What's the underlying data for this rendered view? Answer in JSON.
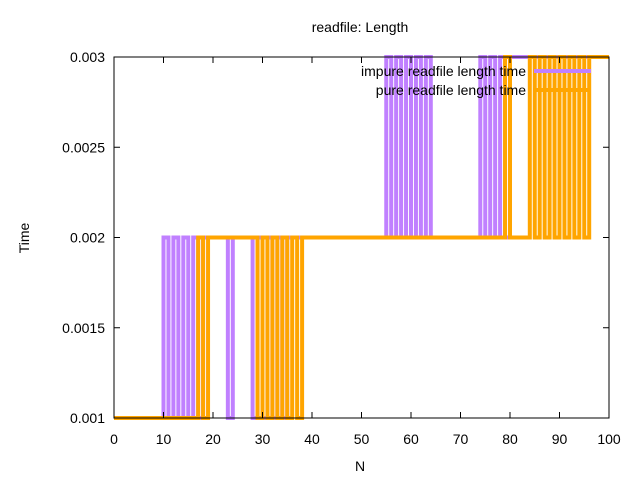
{
  "chart_data": {
    "type": "line",
    "title": "readfile: Length",
    "xlabel": "N",
    "ylabel": "Time",
    "xlim": [
      0,
      100
    ],
    "ylim": [
      0.001,
      0.003
    ],
    "xticks": [
      "0",
      "10",
      "20",
      "30",
      "40",
      "50",
      "60",
      "70",
      "80",
      "90",
      "100"
    ],
    "yticks": [
      "0.001",
      "0.0015",
      "0.002",
      "0.0025",
      "0.003"
    ],
    "grid": false,
    "legend_position": "top-right",
    "series": [
      {
        "name": "impure readfile length time",
        "color": "#c080ff",
        "x": [
          0,
          1,
          2,
          3,
          4,
          5,
          6,
          7,
          8,
          9,
          10,
          11,
          12,
          13,
          14,
          15,
          16,
          17,
          18,
          19,
          20,
          21,
          22,
          23,
          24,
          25,
          26,
          27,
          28,
          29,
          30,
          31,
          32,
          33,
          34,
          35,
          36,
          37,
          38,
          39,
          40,
          41,
          42,
          43,
          44,
          45,
          46,
          47,
          48,
          49,
          50,
          51,
          52,
          53,
          54,
          55,
          56,
          57,
          58,
          59,
          60,
          61,
          62,
          63,
          64,
          65,
          66,
          67,
          68,
          69,
          70,
          71,
          72,
          73,
          74,
          75,
          76,
          77,
          78,
          79,
          80,
          81,
          82,
          83,
          84,
          85,
          86,
          87,
          88,
          89,
          90,
          91,
          92,
          93,
          94,
          95,
          96,
          97,
          98,
          99,
          100
        ],
        "values": [
          0.001,
          0.001,
          0.001,
          0.001,
          0.001,
          0.001,
          0.001,
          0.001,
          0.001,
          0.001,
          0.002,
          0.001,
          0.002,
          0.001,
          0.002,
          0.001,
          0.002,
          0.001,
          0.002,
          0.002,
          0.002,
          0.002,
          0.002,
          0.001,
          0.002,
          0.002,
          0.002,
          0.002,
          0.001,
          0.002,
          0.001,
          0.002,
          0.001,
          0.002,
          0.001,
          0.002,
          0.002,
          0.002,
          0.002,
          0.002,
          0.002,
          0.002,
          0.002,
          0.002,
          0.002,
          0.002,
          0.002,
          0.002,
          0.002,
          0.002,
          0.002,
          0.002,
          0.002,
          0.002,
          0.002,
          0.003,
          0.002,
          0.003,
          0.002,
          0.003,
          0.002,
          0.003,
          0.002,
          0.003,
          0.002,
          0.002,
          0.002,
          0.002,
          0.002,
          0.002,
          0.002,
          0.002,
          0.002,
          0.002,
          0.003,
          0.002,
          0.003,
          0.002,
          0.003,
          0.002,
          0.003,
          0.003,
          0.003,
          0.003,
          0.003,
          0.003,
          0.003,
          0.003,
          0.003,
          0.003,
          0.003,
          0.003,
          0.003,
          0.003,
          0.003,
          0.003,
          0.003,
          0.003,
          0.003,
          0.003,
          0.003
        ]
      },
      {
        "name": "pure readfile length time",
        "color": "#ffa500",
        "x": [
          0,
          1,
          2,
          3,
          4,
          5,
          6,
          7,
          8,
          9,
          10,
          11,
          12,
          13,
          14,
          15,
          16,
          17,
          18,
          19,
          20,
          21,
          22,
          23,
          24,
          25,
          26,
          27,
          28,
          29,
          30,
          31,
          32,
          33,
          34,
          35,
          36,
          37,
          38,
          39,
          40,
          41,
          42,
          43,
          44,
          45,
          46,
          47,
          48,
          49,
          50,
          51,
          52,
          53,
          54,
          55,
          56,
          57,
          58,
          59,
          60,
          61,
          62,
          63,
          64,
          65,
          66,
          67,
          68,
          69,
          70,
          71,
          72,
          73,
          74,
          75,
          76,
          77,
          78,
          79,
          80,
          81,
          82,
          83,
          84,
          85,
          86,
          87,
          88,
          89,
          90,
          91,
          92,
          93,
          94,
          95,
          96,
          97,
          98,
          99,
          100
        ],
        "values": [
          0.001,
          0.001,
          0.001,
          0.001,
          0.001,
          0.001,
          0.001,
          0.001,
          0.001,
          0.001,
          0.001,
          0.001,
          0.001,
          0.001,
          0.001,
          0.001,
          0.001,
          0.002,
          0.001,
          0.002,
          0.002,
          0.002,
          0.002,
          0.002,
          0.002,
          0.002,
          0.002,
          0.002,
          0.002,
          0.001,
          0.002,
          0.001,
          0.002,
          0.001,
          0.002,
          0.001,
          0.002,
          0.001,
          0.002,
          0.002,
          0.002,
          0.002,
          0.002,
          0.002,
          0.002,
          0.002,
          0.002,
          0.002,
          0.002,
          0.002,
          0.002,
          0.002,
          0.002,
          0.002,
          0.002,
          0.002,
          0.002,
          0.002,
          0.002,
          0.002,
          0.002,
          0.002,
          0.002,
          0.002,
          0.002,
          0.002,
          0.002,
          0.002,
          0.002,
          0.002,
          0.002,
          0.002,
          0.002,
          0.002,
          0.002,
          0.002,
          0.002,
          0.002,
          0.002,
          0.003,
          0.002,
          0.002,
          0.002,
          0.002,
          0.003,
          0.002,
          0.003,
          0.002,
          0.003,
          0.002,
          0.003,
          0.002,
          0.003,
          0.002,
          0.003,
          0.002,
          0.003,
          0.003,
          0.003,
          0.003,
          0.003
        ]
      }
    ]
  }
}
